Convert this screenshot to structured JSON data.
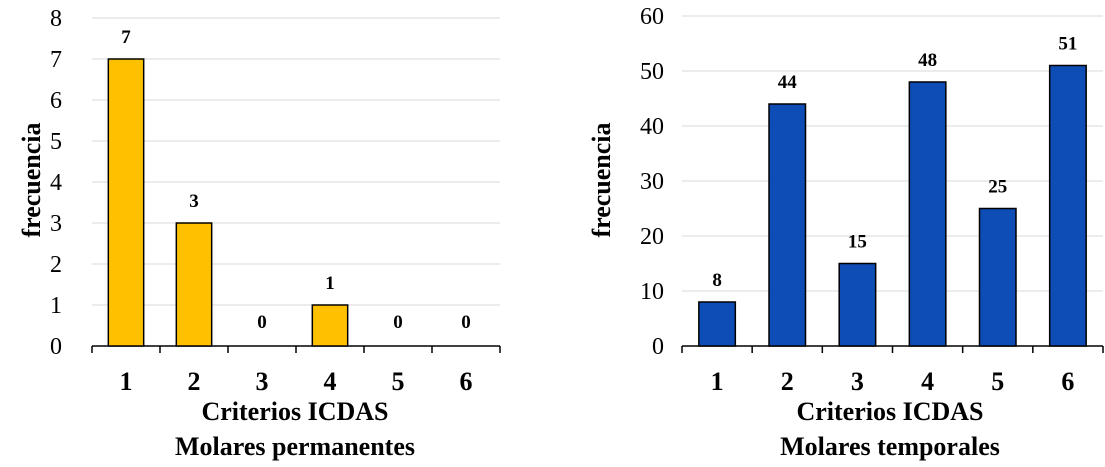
{
  "chart_data": [
    {
      "type": "bar",
      "categories": [
        "1",
        "2",
        "3",
        "4",
        "5",
        "6"
      ],
      "values": [
        7,
        3,
        0,
        1,
        0,
        0
      ],
      "ylabel": "frecuencia",
      "xlabel": "Criterios ICDAS",
      "subtitle": "Molares permanentes",
      "ylim": [
        0,
        8
      ],
      "yticks": [
        "0",
        "1",
        "2",
        "3",
        "4",
        "5",
        "6",
        "7",
        "8"
      ],
      "bar_color": "#FFC000",
      "grid": true,
      "data_labels": true
    },
    {
      "type": "bar",
      "categories": [
        "1",
        "2",
        "3",
        "4",
        "5",
        "6"
      ],
      "values": [
        8,
        44,
        15,
        48,
        25,
        51
      ],
      "ylabel": "frecuencia",
      "xlabel": "Criterios ICDAS",
      "subtitle": "Molares temporales",
      "ylim": [
        0,
        60
      ],
      "yticks": [
        "0",
        "10",
        "20",
        "30",
        "40",
        "50",
        "60"
      ],
      "bar_color": "#0E4DB5",
      "grid": true,
      "data_labels": true
    }
  ]
}
